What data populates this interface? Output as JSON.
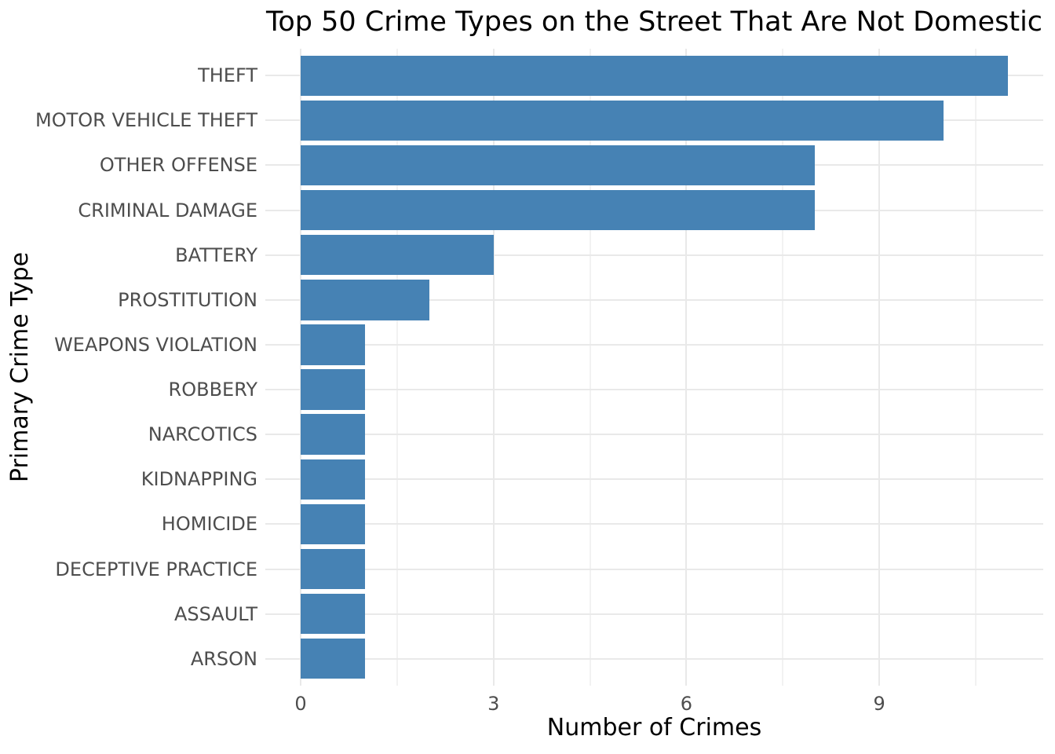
{
  "chart_data": {
    "type": "bar",
    "orientation": "horizontal",
    "title": "Top 50 Crime Types on the Street That Are Not Domestic",
    "xlabel": "Number of Crimes",
    "ylabel": "Primary Crime Type",
    "categories": [
      "THEFT",
      "MOTOR VEHICLE THEFT",
      "OTHER OFFENSE",
      "CRIMINAL DAMAGE",
      "BATTERY",
      "PROSTITUTION",
      "WEAPONS VIOLATION",
      "ROBBERY",
      "NARCOTICS",
      "KIDNAPPING",
      "HOMICIDE",
      "DECEPTIVE PRACTICE",
      "ASSAULT",
      "ARSON"
    ],
    "values": [
      11,
      10,
      8,
      8,
      3,
      2,
      1,
      1,
      1,
      1,
      1,
      1,
      1,
      1
    ],
    "x_ticks": [
      0,
      3,
      6,
      9
    ],
    "x_tick_labels": [
      "0",
      "3",
      "6",
      "9"
    ],
    "x_minor_ticks": [
      1.5,
      4.5,
      7.5,
      10.5
    ],
    "xlim": [
      -0.55,
      11.55
    ],
    "bar_width_fraction": 0.9,
    "grid": true,
    "legend_position": "none",
    "colors": {
      "bar": "#4682B4",
      "grid_major": "#E9E9E9",
      "grid_minor": "#F2F2F2",
      "axis_text": "#4D4D4D",
      "title_text": "#000000",
      "background": "#FFFFFF"
    }
  }
}
